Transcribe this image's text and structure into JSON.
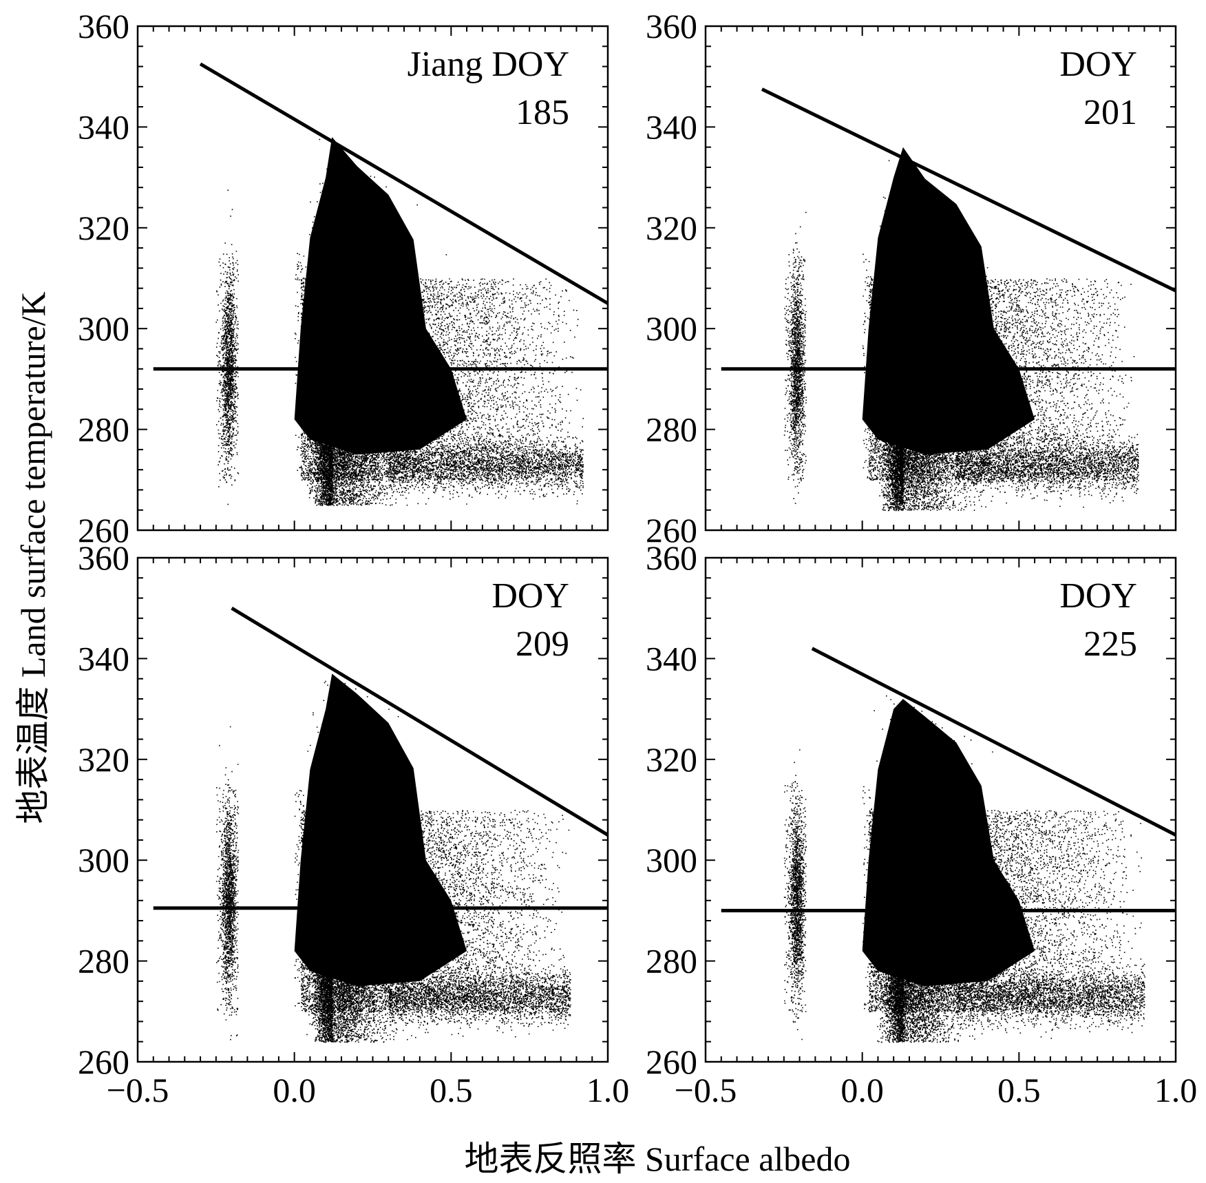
{
  "figure": {
    "ylabel": "地表温度 Land surface temperature/K",
    "xlabel": "地表反照率 Surface albedo"
  },
  "chart_data": [
    {
      "type": "scatter",
      "label_line1": "Jiang DOY",
      "label_line2": "185",
      "xlim": [
        -0.5,
        1.0
      ],
      "ylim": [
        260,
        360
      ],
      "xticks": [
        "−0.5",
        "0.0",
        "0.5",
        "1.0"
      ],
      "yticks": [
        "260",
        "280",
        "300",
        "320",
        "340",
        "360"
      ],
      "dry_edge": {
        "x": [
          -0.3,
          1.0
        ],
        "y": [
          352.5,
          305.0
        ]
      },
      "wet_edge": {
        "x": [
          -0.45,
          1.0
        ],
        "y": [
          292.0,
          292.0
        ]
      },
      "cloud": {
        "peak_x": 0.12,
        "peak_t": 340,
        "max_x": 0.92,
        "min_t": 265
      },
      "color": "#000000"
    },
    {
      "type": "scatter",
      "label_line1": "DOY",
      "label_line2": "201",
      "xlim": [
        -0.5,
        1.0
      ],
      "ylim": [
        260,
        360
      ],
      "xticks": [
        "−0.5",
        "0.0",
        "0.5",
        "1.0"
      ],
      "yticks": [
        "260",
        "280",
        "300",
        "320",
        "340",
        "360"
      ],
      "dry_edge": {
        "x": [
          -0.32,
          1.0
        ],
        "y": [
          347.5,
          307.5
        ]
      },
      "wet_edge": {
        "x": [
          -0.45,
          1.0
        ],
        "y": [
          292.0,
          292.0
        ]
      },
      "cloud": {
        "peak_x": 0.13,
        "peak_t": 338,
        "max_x": 0.88,
        "min_t": 264
      },
      "color": "#000000"
    },
    {
      "type": "scatter",
      "label_line1": "DOY",
      "label_line2": "209",
      "xlim": [
        -0.5,
        1.0
      ],
      "ylim": [
        260,
        360
      ],
      "xticks": [
        "−0.5",
        "0.0",
        "0.5",
        "1.0"
      ],
      "yticks": [
        "260",
        "280",
        "300",
        "320",
        "340",
        "360"
      ],
      "dry_edge": {
        "x": [
          -0.2,
          1.0
        ],
        "y": [
          350.0,
          305.0
        ]
      },
      "wet_edge": {
        "x": [
          -0.45,
          1.0
        ],
        "y": [
          290.5,
          290.5
        ]
      },
      "cloud": {
        "peak_x": 0.12,
        "peak_t": 339,
        "max_x": 0.88,
        "min_t": 264
      },
      "color": "#000000"
    },
    {
      "type": "scatter",
      "label_line1": "DOY",
      "label_line2": "225",
      "xlim": [
        -0.5,
        1.0
      ],
      "ylim": [
        260,
        360
      ],
      "xticks": [
        "−0.5",
        "0.0",
        "0.5",
        "1.0"
      ],
      "yticks": [
        "260",
        "280",
        "300",
        "320",
        "340",
        "360"
      ],
      "dry_edge": {
        "x": [
          -0.16,
          1.0
        ],
        "y": [
          342.0,
          305.0
        ]
      },
      "wet_edge": {
        "x": [
          -0.45,
          1.0
        ],
        "y": [
          290.0,
          290.0
        ]
      },
      "cloud": {
        "peak_x": 0.13,
        "peak_t": 334,
        "max_x": 0.9,
        "min_t": 264
      },
      "color": "#000000"
    }
  ]
}
